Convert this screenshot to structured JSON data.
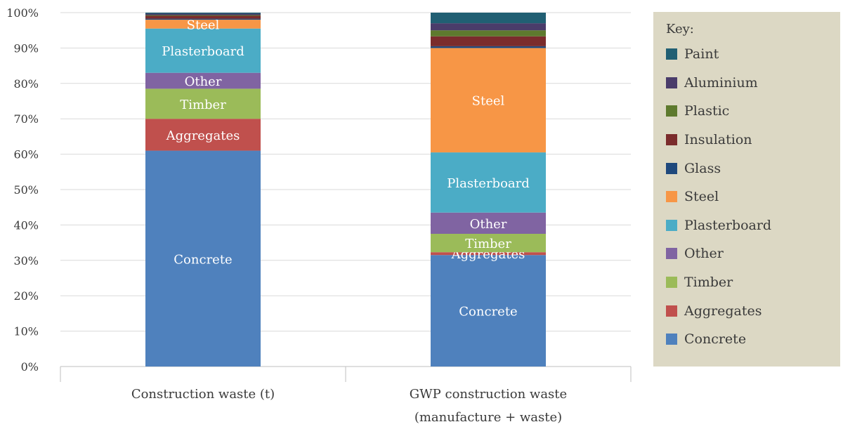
{
  "chart_data": {
    "type": "bar",
    "stacked": true,
    "categories": [
      "Construction waste (t)",
      "GWP construction waste|(manufacture + waste)"
    ],
    "y_ticks": [
      "0%",
      "10%",
      "20%",
      "30%",
      "40%",
      "50%",
      "60%",
      "70%",
      "80%",
      "90%",
      "100%"
    ],
    "ylim": [
      0,
      100
    ],
    "grid": true,
    "legend_position": "right",
    "legend_title": "Key:",
    "series": [
      {
        "name": "Concrete",
        "color": "#4f81bd",
        "values": [
          61,
          31.5
        ]
      },
      {
        "name": "Aggregates",
        "color": "#c0504d",
        "values": [
          9,
          0.8
        ]
      },
      {
        "name": "Timber",
        "color": "#9bbb59",
        "values": [
          8.5,
          5.2
        ]
      },
      {
        "name": "Other",
        "color": "#8064a2",
        "values": [
          4.5,
          6
        ]
      },
      {
        "name": "Plasterboard",
        "color": "#4bacc6",
        "values": [
          12.5,
          17
        ]
      },
      {
        "name": "Steel",
        "color": "#f79646",
        "values": [
          2.5,
          29.5
        ]
      },
      {
        "name": "Glass",
        "color": "#1f497d",
        "values": [
          0.3,
          0.5
        ]
      },
      {
        "name": "Insulation",
        "color": "#7b2c2c",
        "values": [
          0.8,
          2.8
        ]
      },
      {
        "name": "Plastic",
        "color": "#5e7a2e",
        "values": [
          0.2,
          1.7
        ]
      },
      {
        "name": "Aluminium",
        "color": "#4a3c6a",
        "values": [
          0.4,
          2
        ]
      },
      {
        "name": "Paint",
        "color": "#215f73",
        "values": [
          0.3,
          3
        ]
      }
    ],
    "segment_labels": [
      [
        "Concrete",
        "Aggregates",
        "Timber",
        "Other",
        "Plasterboard",
        "Steel",
        "",
        "",
        "",
        "",
        ""
      ],
      [
        "Concrete",
        "Aggregates",
        "Timber",
        "Other",
        "Plasterboard",
        "Steel",
        "",
        "",
        "",
        "",
        ""
      ]
    ],
    "legend_order": [
      "Paint",
      "Aluminium",
      "Plastic",
      "Insulation",
      "Glass",
      "Steel",
      "Plasterboard",
      "Other",
      "Timber",
      "Aggregates",
      "Concrete"
    ]
  }
}
